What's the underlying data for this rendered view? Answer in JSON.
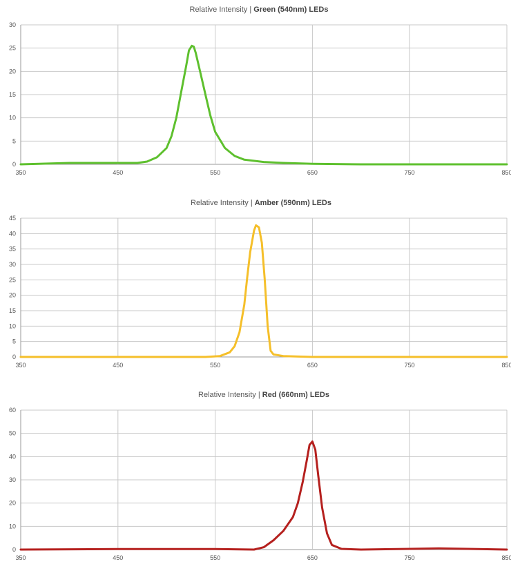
{
  "chart_data": [
    {
      "type": "line",
      "title_prefix": "Relative Intensity | ",
      "title_bold": "Green (540nm) LEDs",
      "xlim": [
        350,
        850
      ],
      "ylim": [
        0,
        30
      ],
      "x_ticks": [
        350,
        450,
        550,
        650,
        750,
        850
      ],
      "y_ticks": [
        0,
        5,
        10,
        15,
        20,
        25,
        30
      ],
      "grid": true,
      "series": [
        {
          "color": "#5ec02e",
          "x": [
            350,
            400,
            450,
            470,
            480,
            490,
            500,
            505,
            510,
            515,
            520,
            523,
            526,
            528,
            530,
            535,
            540,
            545,
            550,
            560,
            570,
            580,
            600,
            620,
            650,
            700,
            750,
            800,
            850
          ],
          "y": [
            0,
            0.3,
            0.3,
            0.3,
            0.6,
            1.5,
            3.5,
            6,
            10,
            15.5,
            21,
            24.5,
            25.5,
            25.3,
            24,
            19.5,
            15,
            10.5,
            7,
            3.5,
            1.8,
            1.0,
            0.5,
            0.3,
            0.1,
            0,
            0,
            0,
            0
          ]
        }
      ]
    },
    {
      "type": "line",
      "title_prefix": "Relative Intensity | ",
      "title_bold": "Amber (590nm) LEDs",
      "xlim": [
        350,
        850
      ],
      "ylim": [
        0,
        45
      ],
      "x_ticks": [
        350,
        450,
        550,
        650,
        750,
        850
      ],
      "y_ticks": [
        0,
        5,
        10,
        15,
        20,
        25,
        30,
        35,
        40,
        45
      ],
      "grid": true,
      "series": [
        {
          "color": "#f5bf2a",
          "x": [
            350,
            450,
            520,
            540,
            555,
            565,
            570,
            575,
            580,
            583,
            586,
            590,
            592,
            595,
            598,
            601,
            604,
            607,
            610,
            620,
            650,
            750,
            850
          ],
          "y": [
            0,
            0,
            0,
            0,
            0.3,
            1.5,
            3.5,
            8,
            17,
            26,
            34,
            41,
            42.7,
            42,
            37,
            25,
            10,
            2,
            0.8,
            0.3,
            0,
            0,
            0
          ]
        }
      ]
    },
    {
      "type": "line",
      "title_prefix": "Relative Intensity | ",
      "title_bold": "Red (660nm) LEDs",
      "xlim": [
        350,
        850
      ],
      "ylim": [
        0,
        60
      ],
      "x_ticks": [
        350,
        450,
        550,
        650,
        750,
        850
      ],
      "y_ticks": [
        0,
        10,
        20,
        30,
        40,
        50,
        60
      ],
      "grid": true,
      "series": [
        {
          "color": "#b5201e",
          "x": [
            350,
            450,
            550,
            590,
            600,
            610,
            620,
            630,
            635,
            640,
            644,
            647,
            650,
            653,
            656,
            660,
            665,
            670,
            680,
            700,
            750,
            780,
            850
          ],
          "y": [
            0,
            0.2,
            0.2,
            0,
            1,
            4,
            8,
            14,
            20,
            29,
            38,
            45,
            46.5,
            43,
            32,
            18,
            7,
            2,
            0.3,
            0,
            0.3,
            0.5,
            0
          ]
        }
      ]
    }
  ]
}
